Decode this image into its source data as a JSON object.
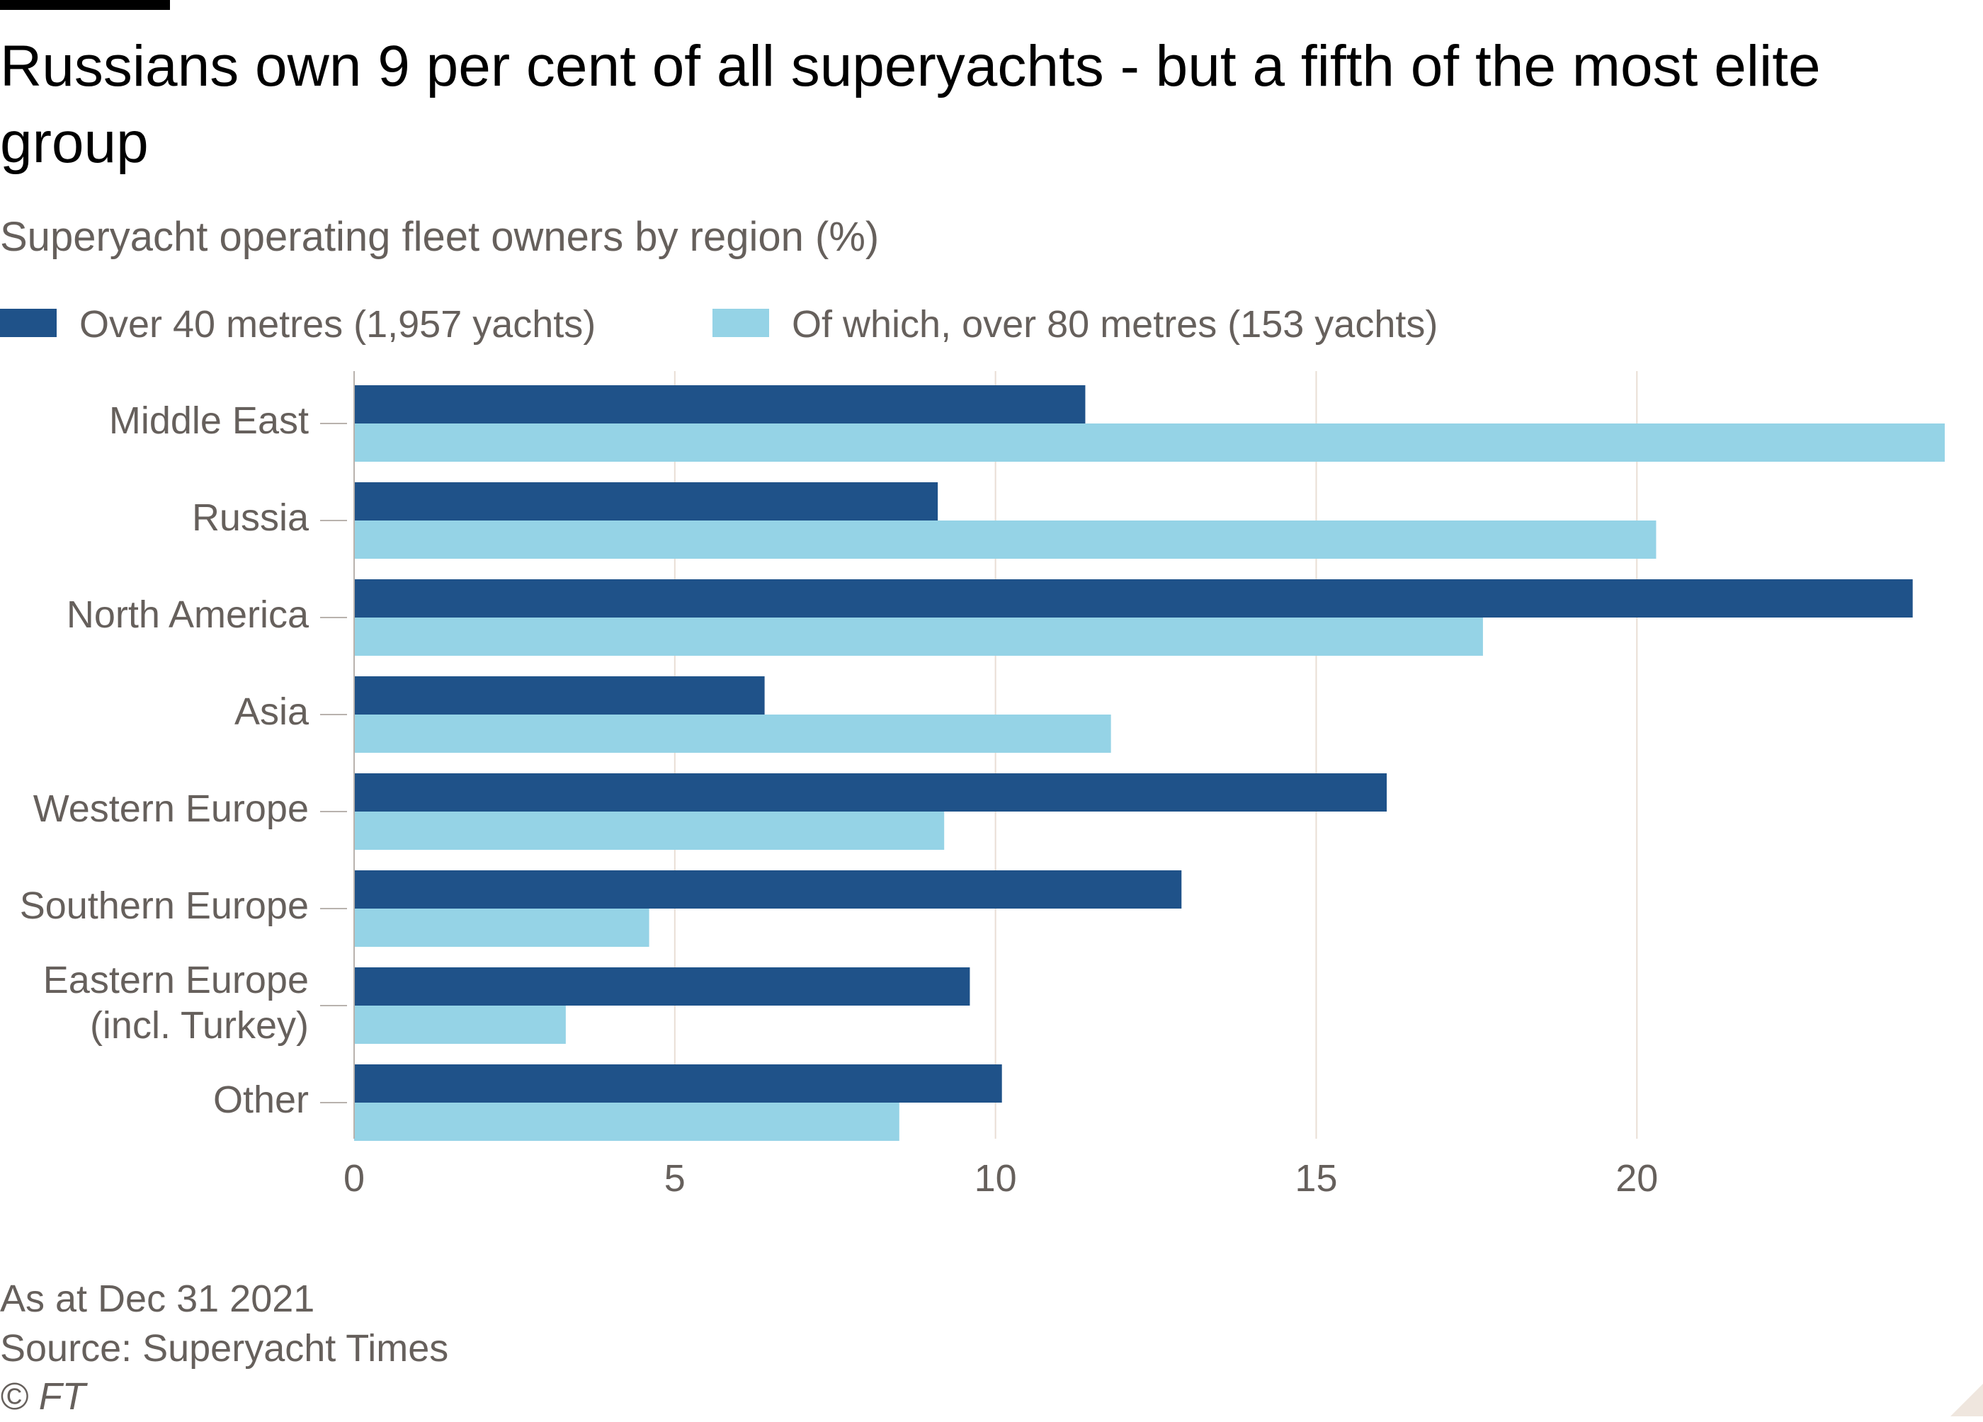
{
  "header": {
    "title": "Russians own 9 per cent of all superyachts - but a fifth of the most elite group",
    "subtitle": "Superyacht operating fleet owners by region (%)"
  },
  "legend": {
    "items": [
      {
        "label": "Over 40 metres (1,957 yachts)",
        "color": "#1f5289"
      },
      {
        "label": "Of which, over 80 metres (153 yachts)",
        "color": "#95d3e6"
      }
    ]
  },
  "chart_data": {
    "type": "bar",
    "orientation": "horizontal",
    "title": "Russians own 9 per cent of all superyachts - but a fifth of the most elite group",
    "subtitle": "Superyacht operating fleet owners by region (%)",
    "categories": [
      [
        "Middle East"
      ],
      [
        "Russia"
      ],
      [
        "North America"
      ],
      [
        "Asia"
      ],
      [
        "Western Europe"
      ],
      [
        "Southern Europe"
      ],
      [
        "Eastern Europe",
        "(incl. Turkey)"
      ],
      [
        "Other"
      ]
    ],
    "series": [
      {
        "name": "Over 40 metres (1,957 yachts)",
        "color": "#1f5289",
        "values": [
          11.4,
          9.1,
          24.3,
          6.4,
          16.1,
          12.9,
          9.6,
          10.1
        ]
      },
      {
        "name": "Of which, over 80 metres (153 yachts)",
        "color": "#95d3e6",
        "values": [
          24.8,
          20.3,
          17.6,
          11.8,
          9.2,
          4.6,
          3.3,
          8.5
        ]
      }
    ],
    "xlim": [
      0,
      24.8
    ],
    "xticks": [
      0,
      5,
      10,
      15,
      20
    ],
    "grid": true,
    "legend_position": "top-left"
  },
  "footer": {
    "note": "As at Dec 31 2021",
    "source": "Source: Superyacht Times",
    "copyright": "© FT"
  },
  "colors": {
    "text_primary": "#000000",
    "text_secondary": "#66605c",
    "gridline": "#e9ded5",
    "axis": "#b8b2ad"
  }
}
